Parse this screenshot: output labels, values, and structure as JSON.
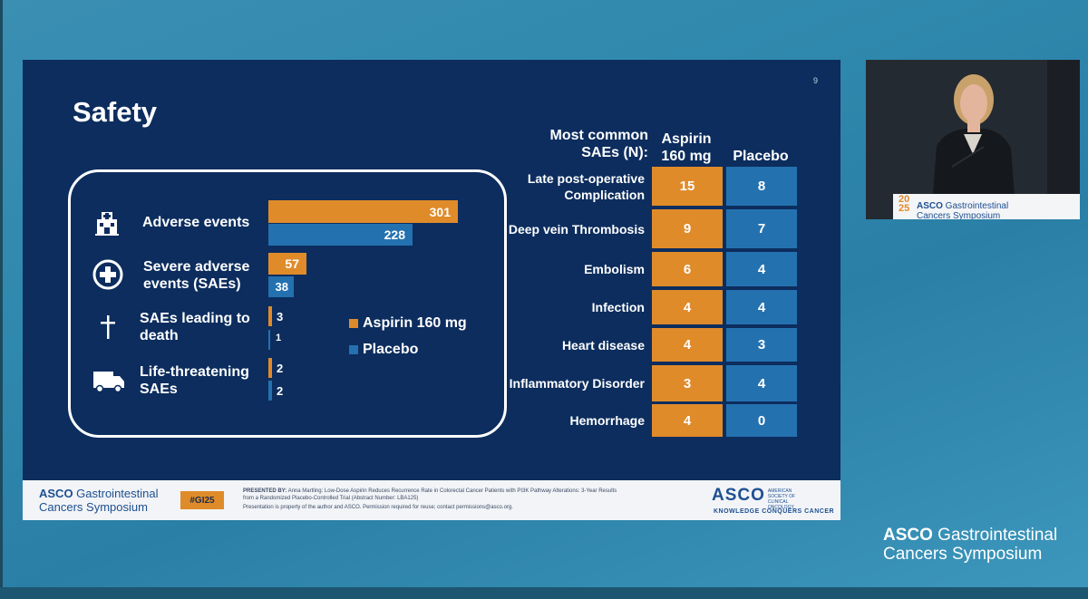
{
  "slide": {
    "number": "9",
    "title": "Safety",
    "events": [
      {
        "label": "Adverse events",
        "icon": "hospital-building-icon",
        "aspirin": "301",
        "placebo": "228"
      },
      {
        "label": "Severe adverse events (SAEs)",
        "icon": "medical-cross-icon",
        "aspirin": "57",
        "placebo": "38"
      },
      {
        "label": "SAEs leading to death",
        "icon": "latin-cross-icon",
        "aspirin": "3",
        "placebo": "1"
      },
      {
        "label": "Life-threatening SAEs",
        "icon": "ambulance-icon",
        "aspirin": "2",
        "placebo": "2"
      }
    ],
    "legend": {
      "aspirin": "Aspirin 160 mg",
      "placebo": "Placebo"
    },
    "table": {
      "header_label": "Most common SAEs (N):",
      "header_aspirin": "Aspirin 160 mg",
      "header_placebo": "Placebo",
      "rows": [
        {
          "label": "Late post-operative Complication",
          "aspirin": "15",
          "placebo": "8"
        },
        {
          "label": "Deep vein Thrombosis",
          "aspirin": "9",
          "placebo": "7"
        },
        {
          "label": "Embolism",
          "aspirin": "6",
          "placebo": "4"
        },
        {
          "label": "Infection",
          "aspirin": "4",
          "placebo": "4"
        },
        {
          "label": "Heart disease",
          "aspirin": "4",
          "placebo": "3"
        },
        {
          "label": "Inflammatory Disorder",
          "aspirin": "3",
          "placebo": "4"
        },
        {
          "label": "Hemorrhage",
          "aspirin": "4",
          "placebo": "0"
        }
      ]
    },
    "footer": {
      "asco_line1_bold": "ASCO",
      "asco_line1_rest": " Gastrointestinal",
      "asco_line2": "Cancers Symposium",
      "hashtag": "#GI25",
      "presented_by_label": "PRESENTED BY:",
      "presented_by_text": "Anna Martling: Low-Dose Aspirin Reduces Recurrence Rate in Colorectal Cancer Patients with PI3K Pathway Alterations: 3-Year Results from a Randomized Placebo-Controlled Trial (Abstract Number: LBA125)",
      "property_notice": "Presentation is property of the author and ASCO. Permission required for reuse; contact permissions@asco.org.",
      "asco_big": "ASCO",
      "asco_small": "AMERICAN SOCIETY OF CLINICAL ONCOLOGY",
      "tagline": "KNOWLEDGE CONQUERS CANCER"
    }
  },
  "video": {
    "podium_year_top": "20",
    "podium_year_bottom": "25",
    "podium_text_bold": "ASCO",
    "podium_text_rest": " Gastrointestinal",
    "podium_text_line2": "Cancers Symposium"
  },
  "corner_logo": {
    "line1_bold": "ASCO",
    "line1_rest": " Gastrointestinal",
    "line2": "Cancers Symposium"
  },
  "colors": {
    "aspirin": "#e08b2a",
    "placebo": "#2471b0",
    "slide_bg": "#0c2d5e"
  }
}
